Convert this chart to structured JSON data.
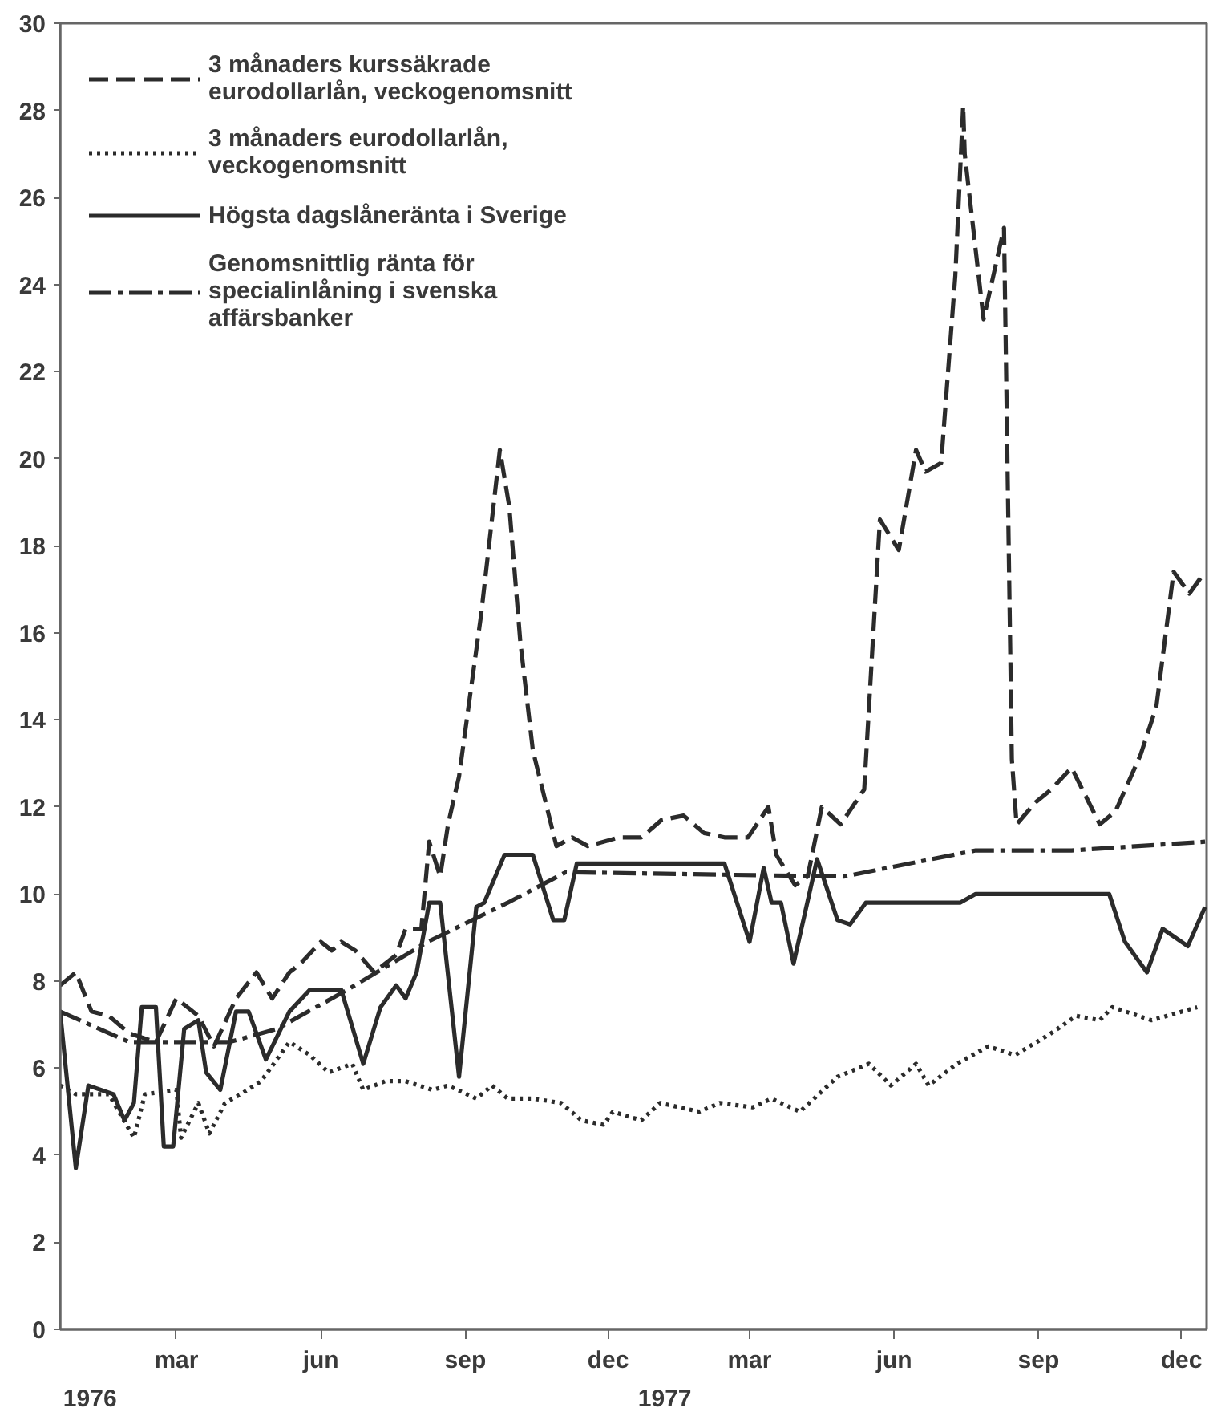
{
  "chart_data": {
    "type": "line",
    "xlim": [
      "1976-01-01",
      "1977-12-31"
    ],
    "xticks": [
      {
        "value": "1976-03-15",
        "label": "mar"
      },
      {
        "value": "1976-06-15",
        "label": "jun"
      },
      {
        "value": "1976-09-15",
        "label": "sep"
      },
      {
        "value": "1976-12-15",
        "label": "dec"
      },
      {
        "value": "1977-03-15",
        "label": "mar"
      },
      {
        "value": "1977-06-15",
        "label": "jun"
      },
      {
        "value": "1977-09-15",
        "label": "sep"
      },
      {
        "value": "1977-12-15",
        "label": "dec"
      }
    ],
    "ylim": [
      0,
      30
    ],
    "yticks": [
      0,
      2,
      4,
      6,
      8,
      10,
      12,
      14,
      16,
      18,
      20,
      22,
      24,
      26,
      28,
      30
    ],
    "annotations": [
      "1976",
      "1977"
    ],
    "grid": false,
    "legend": "top left",
    "marker": "none",
    "series": [
      {
        "name": "3 månaders kurssäkrade eurodollarlån, veckogenomsnitt",
        "color": "#2b2b2b",
        "line_style": "dashed",
        "x": [
          "1976-01-01",
          "1976-01-11",
          "1976-01-21",
          "1976-02-01",
          "1976-02-14",
          "1976-03-02",
          "1976-03-15",
          "1976-03-29",
          "1976-04-08",
          "1976-04-22",
          "1976-05-05",
          "1976-05-15",
          "1976-05-26",
          "1976-06-02",
          "1976-06-15",
          "1976-06-22",
          "1976-06-28",
          "1976-07-07",
          "1976-07-19",
          "1976-08-02",
          "1976-08-08",
          "1976-08-18",
          "1976-08-23",
          "1976-08-30",
          "1976-09-04",
          "1976-09-11",
          "1976-09-25",
          "1976-10-07",
          "1976-10-13",
          "1976-10-20",
          "1976-10-28",
          "1976-11-12",
          "1976-11-22",
          "1976-12-02",
          "1976-12-22",
          "1977-01-05",
          "1977-01-18",
          "1977-02-01",
          "1977-02-14",
          "1977-02-27",
          "1977-03-14",
          "1977-03-27",
          "1977-04-01",
          "1977-04-13",
          "1977-04-21",
          "1977-04-30",
          "1977-05-12",
          "1977-05-27",
          "1977-06-06",
          "1977-06-18",
          "1977-06-29",
          "1977-07-05",
          "1977-07-15",
          "1977-07-24",
          "1977-07-29",
          "1977-07-30",
          "1977-08-11",
          "1977-08-24",
          "1977-08-29",
          "1977-09-01",
          "1977-09-13",
          "1977-09-23",
          "1977-10-06",
          "1977-10-24",
          "1977-11-03",
          "1977-11-19",
          "1977-11-29",
          "1977-12-10",
          "1977-12-20",
          "1977-12-30"
        ],
        "values": [
          7.9,
          8.2,
          7.3,
          7.2,
          6.8,
          6.6,
          7.6,
          7.2,
          6.5,
          7.6,
          8.2,
          7.6,
          8.2,
          8.4,
          8.9,
          8.7,
          8.9,
          8.7,
          8.2,
          8.6,
          9.2,
          9.2,
          11.2,
          10.4,
          11.6,
          12.7,
          16.4,
          20.2,
          18.9,
          15.8,
          13.3,
          11.1,
          11.3,
          11.1,
          11.3,
          11.3,
          11.7,
          11.8,
          11.4,
          11.3,
          11.3,
          12.0,
          10.9,
          10.2,
          10.4,
          12.0,
          11.6,
          12.4,
          18.6,
          17.9,
          20.2,
          19.7,
          19.9,
          24.2,
          28.1,
          27.0,
          23.2,
          25.3,
          13.1,
          11.6,
          12.1,
          12.4,
          12.9,
          11.6,
          11.9,
          13.2,
          14.3,
          17.4,
          16.9,
          17.4
        ]
      },
      {
        "name": "3 månaders eurodollarlån, veckogenomsnitt",
        "color": "#2b2b2b",
        "line_style": "dotted",
        "x": [
          "1976-01-01",
          "1976-01-11",
          "1976-02-01",
          "1976-02-17",
          "1976-02-24",
          "1976-03-15",
          "1976-03-18",
          "1976-03-29",
          "1976-04-05",
          "1976-04-15",
          "1976-04-25",
          "1976-05-08",
          "1976-05-26",
          "1976-06-08",
          "1976-06-20",
          "1976-07-05",
          "1976-07-12",
          "1976-07-26",
          "1976-08-08",
          "1976-08-25",
          "1976-09-04",
          "1976-09-22",
          "1976-10-02",
          "1976-10-12",
          "1976-10-28",
          "1976-11-15",
          "1976-11-28",
          "1976-12-12",
          "1976-12-18",
          "1977-01-05",
          "1977-01-17",
          "1977-02-11",
          "1977-02-24",
          "1977-03-17",
          "1977-03-29",
          "1977-04-16",
          "1977-05-10",
          "1977-05-30",
          "1977-06-13",
          "1977-06-29",
          "1977-07-07",
          "1977-07-25",
          "1977-08-14",
          "1977-08-31",
          "1977-09-23",
          "1977-10-09",
          "1977-10-24",
          "1977-11-01",
          "1977-11-26",
          "1977-12-25"
        ],
        "values": [
          5.6,
          5.4,
          5.4,
          4.4,
          5.4,
          5.5,
          4.4,
          5.2,
          4.5,
          5.2,
          5.4,
          5.7,
          6.6,
          6.3,
          5.9,
          6.1,
          5.5,
          5.7,
          5.7,
          5.5,
          5.6,
          5.3,
          5.6,
          5.3,
          5.3,
          5.2,
          4.8,
          4.7,
          5.0,
          4.8,
          5.2,
          5.0,
          5.2,
          5.1,
          5.3,
          5.0,
          5.8,
          6.1,
          5.6,
          6.1,
          5.6,
          6.1,
          6.5,
          6.3,
          6.8,
          7.2,
          7.1,
          7.4,
          7.1,
          7.4
        ]
      },
      {
        "name": "Högsta dagslåneränta i Sverige",
        "color": "#2b2b2b",
        "line_style": "solid",
        "x": [
          "1976-01-01",
          "1976-01-11",
          "1976-01-19",
          "1976-02-04",
          "1976-02-11",
          "1976-02-17",
          "1976-02-22",
          "1976-03-02",
          "1976-03-07",
          "1976-03-13",
          "1976-03-20",
          "1976-03-29",
          "1976-04-03",
          "1976-04-12",
          "1976-04-22",
          "1976-04-30",
          "1976-05-11",
          "1976-05-26",
          "1976-06-08",
          "1976-06-28",
          "1976-07-12",
          "1976-07-23",
          "1976-08-02",
          "1976-08-08",
          "1976-08-15",
          "1976-08-23",
          "1976-08-30",
          "1976-09-11",
          "1976-09-22",
          "1976-09-27",
          "1976-10-10",
          "1976-10-28",
          "1976-11-10",
          "1976-11-17",
          "1976-11-25",
          "1977-02-27",
          "1977-03-15",
          "1977-03-24",
          "1977-03-29",
          "1977-04-04",
          "1977-04-12",
          "1977-04-27",
          "1977-05-10",
          "1977-05-18",
          "1977-05-28",
          "1977-07-27",
          "1977-08-06",
          "1977-10-30",
          "1977-11-09",
          "1977-11-23",
          "1977-12-03",
          "1977-12-19",
          "1977-12-30"
        ],
        "values": [
          7.3,
          3.7,
          5.6,
          5.4,
          4.8,
          5.2,
          7.4,
          7.4,
          4.2,
          4.2,
          6.9,
          7.1,
          5.9,
          5.5,
          7.3,
          7.3,
          6.2,
          7.3,
          7.8,
          7.8,
          6.1,
          7.4,
          7.9,
          7.6,
          8.2,
          9.8,
          9.8,
          5.8,
          9.7,
          9.8,
          10.9,
          10.9,
          9.4,
          9.4,
          10.7,
          10.7,
          8.9,
          10.6,
          9.8,
          9.8,
          8.4,
          10.8,
          9.4,
          9.3,
          9.8,
          9.8,
          10.0,
          10.0,
          8.9,
          8.2,
          9.2,
          8.8,
          9.7
        ]
      },
      {
        "name": "Genomsnittlig ränta för specialinlåning i svenska affärsbanker",
        "color": "#2b2b2b",
        "line_style": "dashdot",
        "x": [
          "1976-01-01",
          "1976-02-14",
          "1976-04-18",
          "1976-05-18",
          "1976-07-02",
          "1976-08-22",
          "1976-10-12",
          "1976-11-18",
          "1977-05-14",
          "1977-08-06",
          "1977-10-06",
          "1977-12-30"
        ],
        "values": [
          7.3,
          6.6,
          6.6,
          6.9,
          7.8,
          8.9,
          9.8,
          10.5,
          10.4,
          11.0,
          11.0,
          11.2
        ]
      }
    ]
  }
}
